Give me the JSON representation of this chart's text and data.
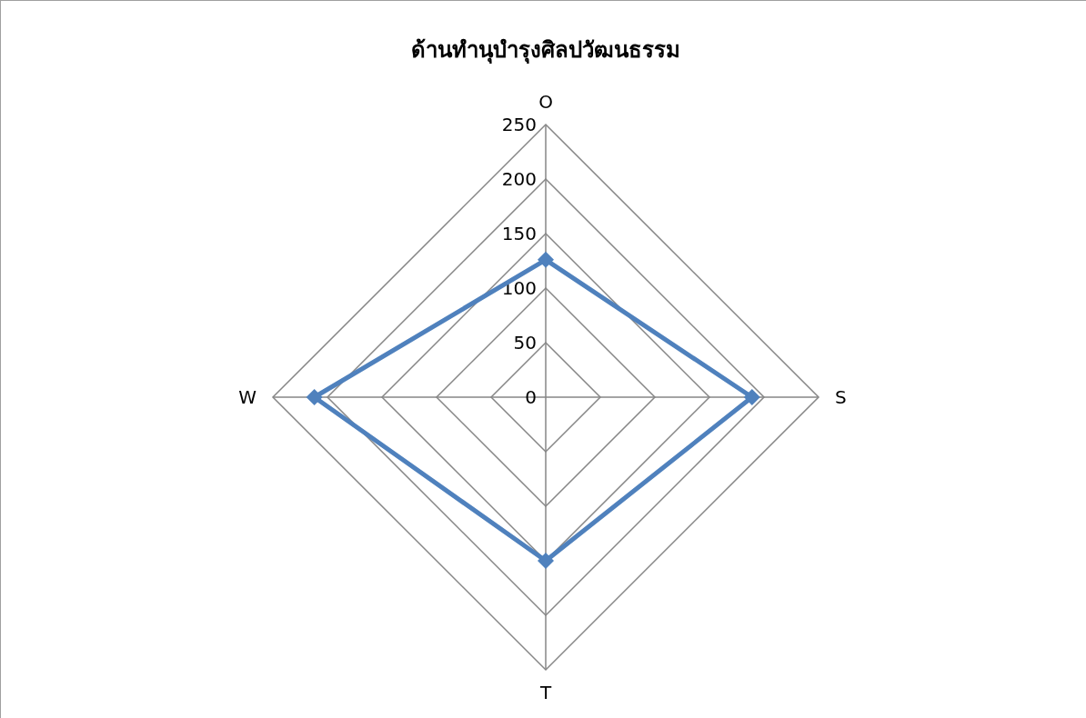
{
  "chart_data": {
    "type": "radar",
    "title": "ด้านทำนุบำรุงศิลปวัฒนธรรม",
    "categories": [
      "O",
      "S",
      "T",
      "W"
    ],
    "series": [
      {
        "color": "#4f81bd",
        "values": [
          126,
          189,
          150,
          212
        ]
      }
    ],
    "ylim": [
      0,
      250
    ],
    "yticks": [
      0,
      50,
      100,
      150,
      200,
      250
    ],
    "grid": true,
    "marker": "diamond",
    "line_style": "solid"
  }
}
